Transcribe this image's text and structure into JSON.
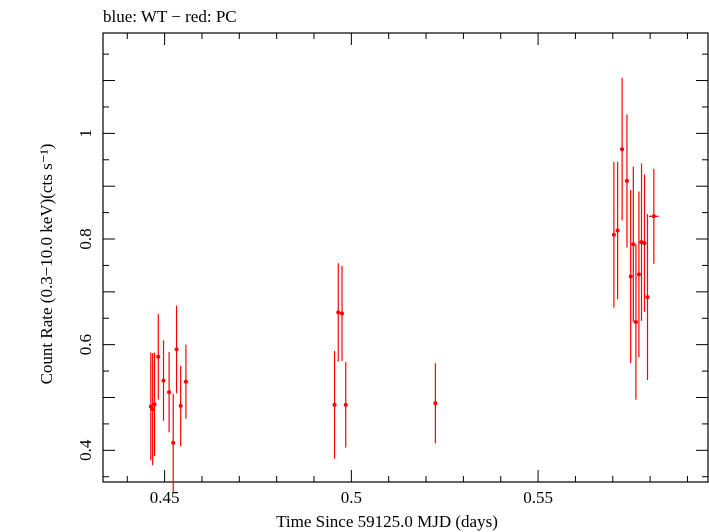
{
  "chart_data": {
    "type": "scatter",
    "title": "blue: WT − red: PC",
    "xlabel": "Time Since 59125.0 MJD (days)",
    "ylabel": "Count Rate (0.3−10.0 keV)(cts s⁻¹)",
    "xlim": [
      0.4335,
      0.5955
    ],
    "ylim": [
      0.34,
      1.19
    ],
    "xticks": [
      {
        "v": 0.45,
        "label": "0.45"
      },
      {
        "v": 0.5,
        "label": "0.5"
      },
      {
        "v": 0.55,
        "label": "0.55"
      }
    ],
    "yticks": [
      {
        "v": 0.4,
        "label": "0.4"
      },
      {
        "v": 0.6,
        "label": "0.6"
      },
      {
        "v": 0.8,
        "label": "0.8"
      },
      {
        "v": 1.0,
        "label": "1"
      }
    ],
    "grid": false,
    "series": [
      {
        "name": "PC",
        "color": "#ff0000",
        "points": [
          {
            "x": 0.4463,
            "y": 0.483,
            "xerr": 0.0004,
            "yerr": 0.102
          },
          {
            "x": 0.4468,
            "y": 0.478,
            "xerr": 0.0004,
            "yerr": 0.106
          },
          {
            "x": 0.4473,
            "y": 0.487,
            "xerr": 0.0004,
            "yerr": 0.098
          },
          {
            "x": 0.4483,
            "y": 0.577,
            "xerr": 0.0005,
            "yerr": 0.081
          },
          {
            "x": 0.4497,
            "y": 0.532,
            "xerr": 0.0005,
            "yerr": 0.076
          },
          {
            "x": 0.4512,
            "y": 0.51,
            "xerr": 0.0005,
            "yerr": 0.076
          },
          {
            "x": 0.4523,
            "y": 0.414,
            "xerr": 0.0004,
            "yerr": 0.093
          },
          {
            "x": 0.4532,
            "y": 0.591,
            "xerr": 0.0004,
            "yerr": 0.083
          },
          {
            "x": 0.4543,
            "y": 0.484,
            "xerr": 0.0004,
            "yerr": 0.076
          },
          {
            "x": 0.4557,
            "y": 0.53,
            "xerr": 0.0006,
            "yerr": 0.07
          },
          {
            "x": 0.4955,
            "y": 0.486,
            "xerr": 0.0004,
            "yerr": 0.102
          },
          {
            "x": 0.4965,
            "y": 0.661,
            "xerr": 0.0005,
            "yerr": 0.093
          },
          {
            "x": 0.4975,
            "y": 0.659,
            "xerr": 0.0004,
            "yerr": 0.09
          },
          {
            "x": 0.4985,
            "y": 0.486,
            "xerr": 0.0004,
            "yerr": 0.081
          },
          {
            "x": 0.5225,
            "y": 0.489,
            "xerr": 0.0005,
            "yerr": 0.076
          },
          {
            "x": 0.5703,
            "y": 0.808,
            "xerr": 0.0004,
            "yerr": 0.138
          },
          {
            "x": 0.5713,
            "y": 0.816,
            "xerr": 0.0004,
            "yerr": 0.13
          },
          {
            "x": 0.5725,
            "y": 0.97,
            "xerr": 0.0005,
            "yerr": 0.135
          },
          {
            "x": 0.5738,
            "y": 0.91,
            "xerr": 0.0004,
            "yerr": 0.126
          },
          {
            "x": 0.5748,
            "y": 0.729,
            "xerr": 0.0004,
            "yerr": 0.164
          },
          {
            "x": 0.5755,
            "y": 0.79,
            "xerr": 0.0004,
            "yerr": 0.147
          },
          {
            "x": 0.5762,
            "y": 0.643,
            "xerr": 0.0004,
            "yerr": 0.147
          },
          {
            "x": 0.577,
            "y": 0.733,
            "xerr": 0.0004,
            "yerr": 0.157
          },
          {
            "x": 0.5777,
            "y": 0.794,
            "xerr": 0.0004,
            "yerr": 0.149
          },
          {
            "x": 0.5785,
            "y": 0.792,
            "xerr": 0.0004,
            "yerr": 0.13
          },
          {
            "x": 0.5793,
            "y": 0.69,
            "xerr": 0.0004,
            "yerr": 0.157
          },
          {
            "x": 0.581,
            "y": 0.843,
            "xerr": 0.0013,
            "yerr": 0.09
          }
        ]
      }
    ]
  }
}
